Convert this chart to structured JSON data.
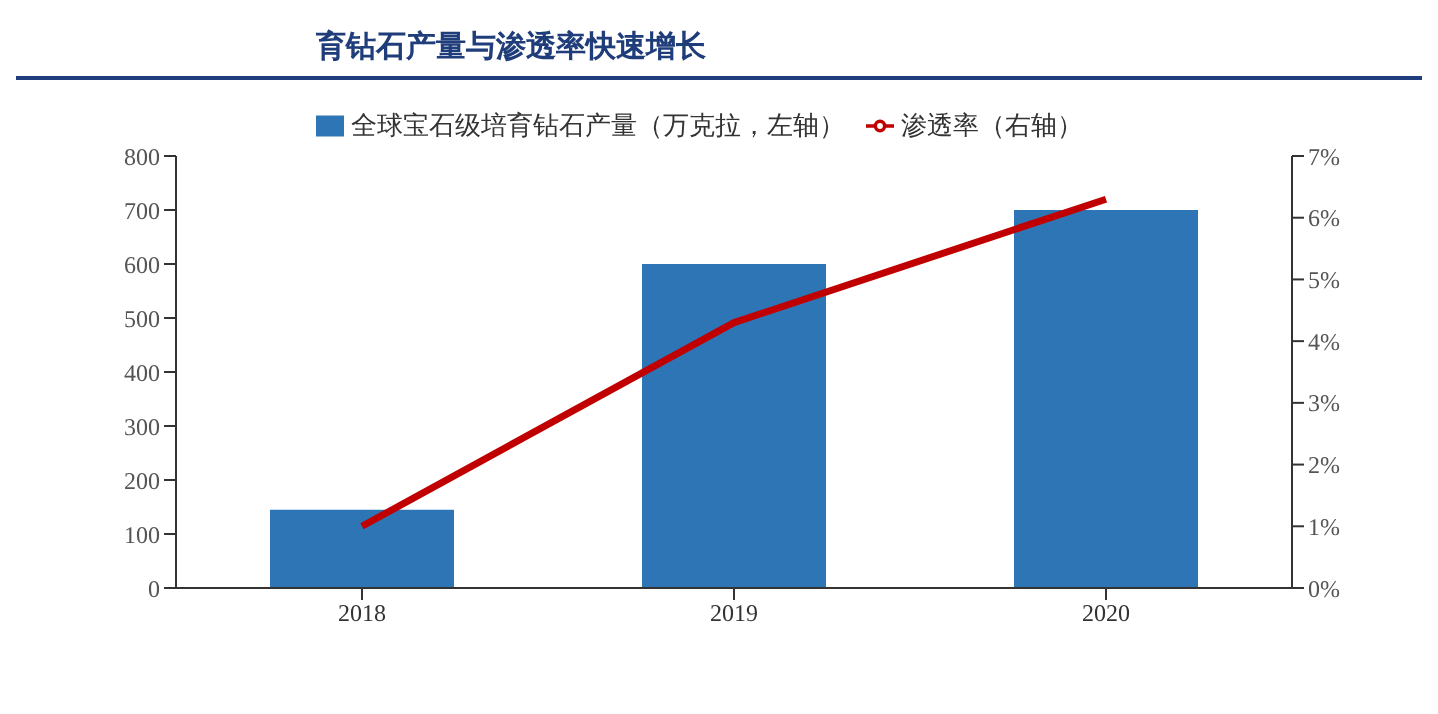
{
  "chart_data": {
    "type": "bar",
    "title": "育钻石产量与渗透率快速增长",
    "categories": [
      "2018",
      "2019",
      "2020"
    ],
    "series": [
      {
        "name": "全球宝石级培育钻石产量（万克拉，左轴）",
        "color": "#2e75b6",
        "values": [
          145,
          600,
          700
        ]
      },
      {
        "name": "渗透率（右轴）",
        "type": "line",
        "axis": "y2",
        "color": "#c00000",
        "values": [
          1.0,
          4.3,
          6.3
        ]
      }
    ],
    "ylim": [
      0,
      800
    ],
    "yticks": [
      0,
      100,
      200,
      300,
      400,
      500,
      600,
      700,
      800
    ],
    "y2lim": [
      0,
      7
    ],
    "y2ticks": [
      {
        "value": 0,
        "label": "0%"
      },
      {
        "value": 1,
        "label": "1%"
      },
      {
        "value": 2,
        "label": "2%"
      },
      {
        "value": 3,
        "label": "3%"
      },
      {
        "value": 4,
        "label": "4%"
      },
      {
        "value": 5,
        "label": "5%"
      },
      {
        "value": 6,
        "label": "6%"
      },
      {
        "value": 7,
        "label": "7%"
      }
    ],
    "legend": "top",
    "marker": "none",
    "grid": false
  }
}
